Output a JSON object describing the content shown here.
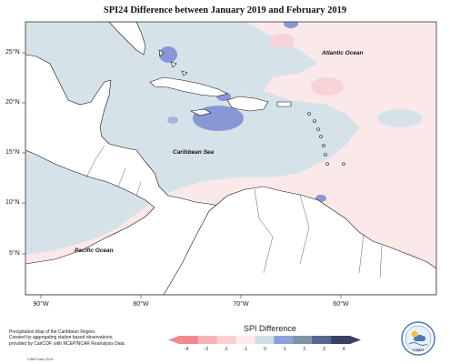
{
  "title": "SPI24 Difference between January 2019 and February 2019",
  "latitude_labels": [
    "25°N",
    "20°N",
    "15°N",
    "10°N",
    "5°N"
  ],
  "longitude_labels": [
    "90°W",
    "80°W",
    "70°W",
    "60°W"
  ],
  "place_labels": {
    "atlantic": "Atlantic Ocean",
    "caribbean": "Caribbean Sea",
    "pacific": "Pacific Ocean"
  },
  "legend": {
    "title": "SPI Difference",
    "ticks": [
      "-4",
      "-3",
      "-2",
      "-1",
      "0",
      "1",
      "2",
      "3",
      "4"
    ],
    "colors": [
      "#f08a8f",
      "#f4b3b6",
      "#f8d0d2",
      "#fce9ea",
      "#cedde6",
      "#8ea0d8",
      "#7d93a6",
      "#58678e",
      "#3b4166"
    ]
  },
  "info_lines": [
    "Precipitation Map of the Caribbean Region.",
    "Created by aggregating station based observations,",
    "provided by CariCOF, with NCEP/NCAR Reanalysis Data."
  ],
  "credit": "CIMH Mar-2019",
  "logo_text": "CIMH",
  "colors": {
    "positive_light": "#d6e2ea",
    "negative_light": "#fbe9ea",
    "negative_medium": "#f6d3d6",
    "positive_strong": "#8898d6",
    "land_white": "#ffffff"
  }
}
